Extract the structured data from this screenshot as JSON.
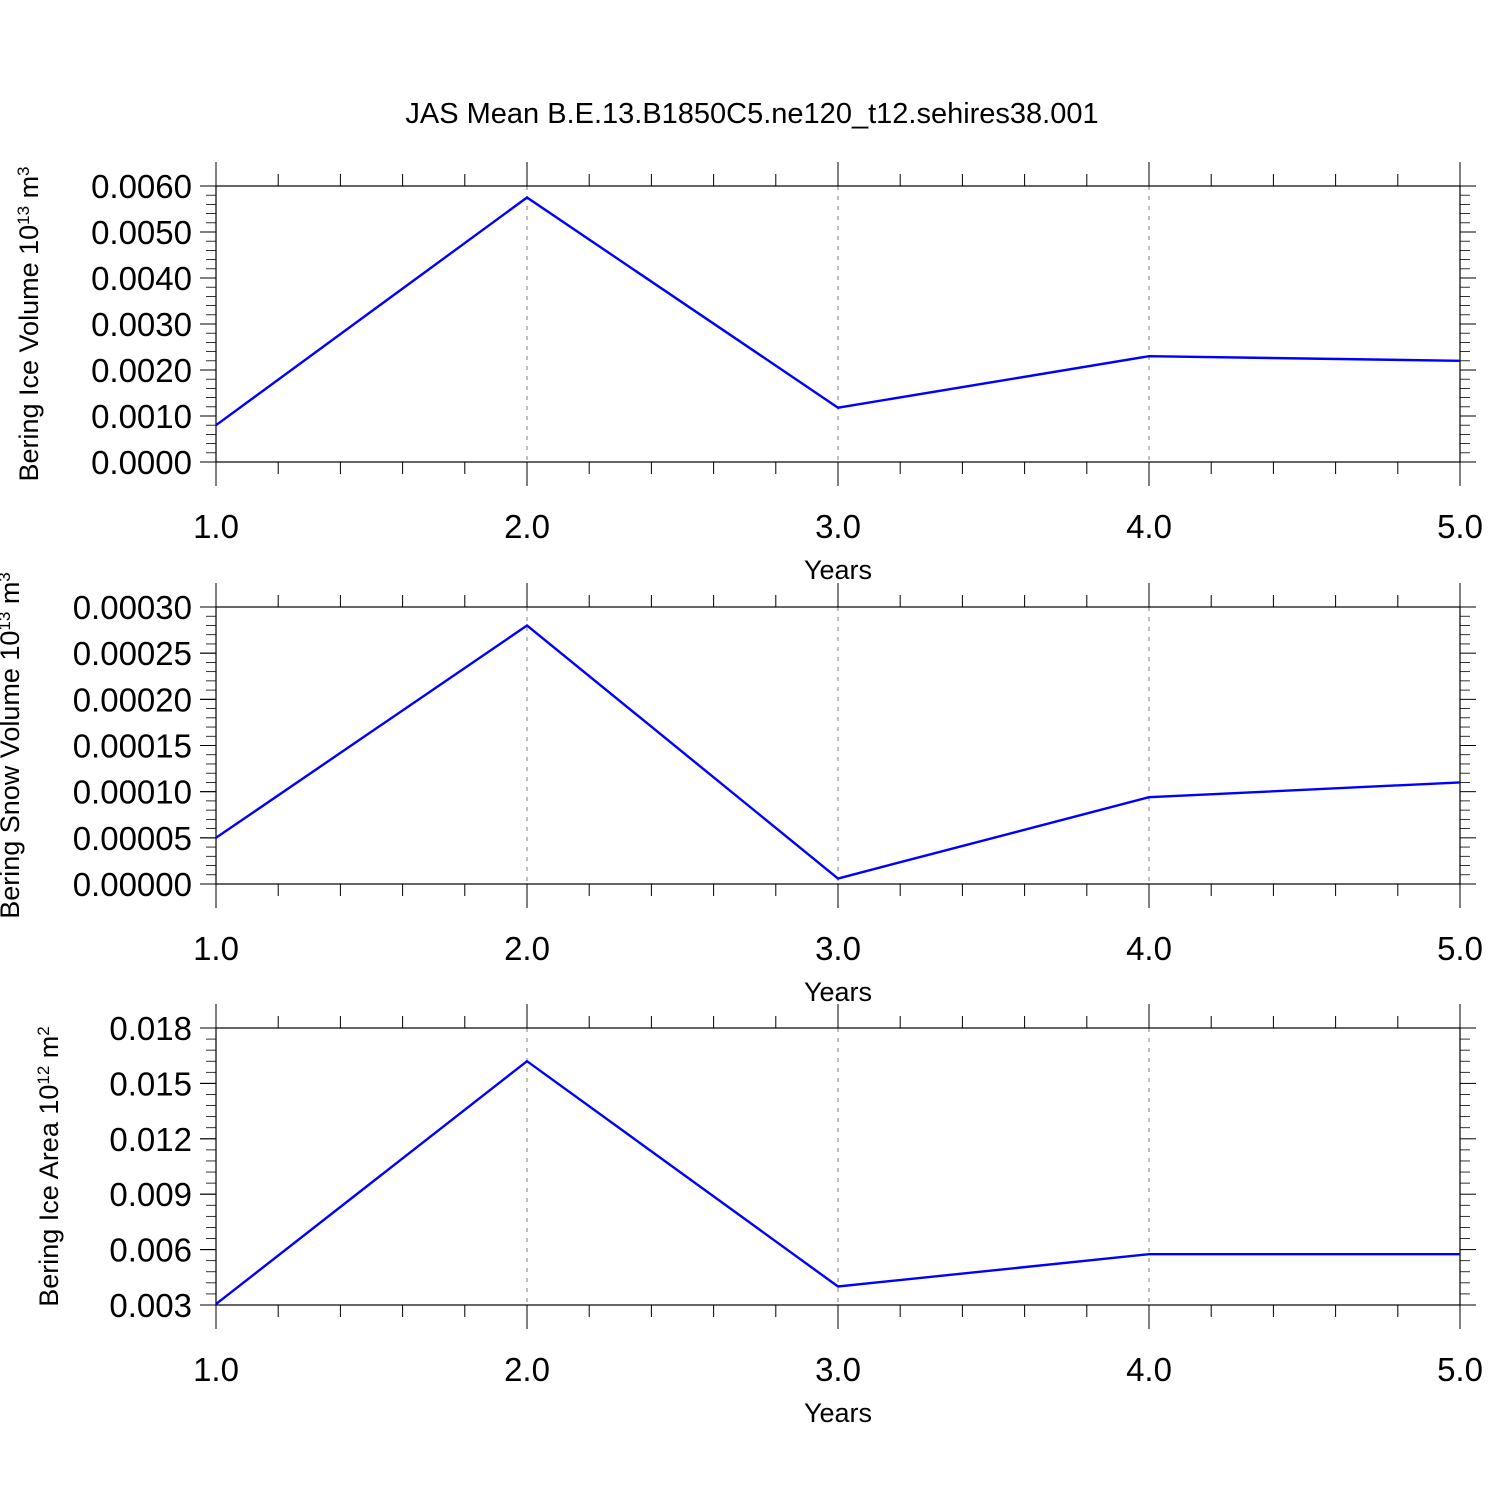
{
  "title": "JAS Mean B.E.13.B1850C5.ne120_t12.sehires38.001",
  "line_color": "#0000ff",
  "chart_data": [
    {
      "type": "line",
      "title": "JAS Mean B.E.13.B1850C5.ne120_t12.sehires38.001",
      "xlabel": "Years",
      "ylabel": "Bering Ice Volume 10",
      "ylabel_exp": "13",
      "ylabel_unit": "m",
      "ylabel_unit_exp": "3",
      "x": [
        1.0,
        2.0,
        3.0,
        4.0,
        5.0
      ],
      "xticks": [
        "1.0",
        "2.0",
        "3.0",
        "4.0",
        "5.0"
      ],
      "ylim": [
        0.0,
        0.006
      ],
      "yticks": [
        0.0,
        0.001,
        0.002,
        0.003,
        0.004,
        0.005,
        0.006
      ],
      "ytick_labels": [
        "0.0000",
        "0.0010",
        "0.0020",
        "0.0030",
        "0.0040",
        "0.0050",
        "0.0060"
      ],
      "series": [
        {
          "values": [
            0.0008,
            0.00575,
            0.00118,
            0.0023,
            0.0022
          ]
        }
      ],
      "grid": "vertical dashed at major x ticks"
    },
    {
      "type": "line",
      "xlabel": "Years",
      "ylabel": "Bering Snow Volume 10",
      "ylabel_exp": "13",
      "ylabel_unit": "m",
      "ylabel_unit_exp": "3",
      "x": [
        1.0,
        2.0,
        3.0,
        4.0,
        5.0
      ],
      "xticks": [
        "1.0",
        "2.0",
        "3.0",
        "4.0",
        "5.0"
      ],
      "ylim": [
        0.0,
        0.0003
      ],
      "yticks": [
        0.0,
        5e-05,
        0.0001,
        0.00015,
        0.0002,
        0.00025,
        0.0003
      ],
      "ytick_labels": [
        "0.00000",
        "0.00005",
        "0.00010",
        "0.00015",
        "0.00020",
        "0.00025",
        "0.00030"
      ],
      "series": [
        {
          "values": [
            5e-05,
            0.00028,
            6e-06,
            9.4e-05,
            0.00011
          ]
        }
      ],
      "grid": "vertical dashed at major x ticks"
    },
    {
      "type": "line",
      "xlabel": "Years",
      "ylabel": "Bering Ice Area 10",
      "ylabel_exp": "12",
      "ylabel_unit": "m",
      "ylabel_unit_exp": "2",
      "x": [
        1.0,
        2.0,
        3.0,
        4.0,
        5.0
      ],
      "xticks": [
        "1.0",
        "2.0",
        "3.0",
        "4.0",
        "5.0"
      ],
      "ylim": [
        0.003,
        0.018
      ],
      "yticks": [
        0.003,
        0.006,
        0.009,
        0.012,
        0.015,
        0.018
      ],
      "ytick_labels": [
        "0.003",
        "0.006",
        "0.009",
        "0.012",
        "0.015",
        "0.018"
      ],
      "series": [
        {
          "values": [
            0.00305,
            0.0162,
            0.004,
            0.00575,
            0.00575
          ]
        }
      ],
      "grid": "vertical dashed at major x ticks"
    }
  ]
}
